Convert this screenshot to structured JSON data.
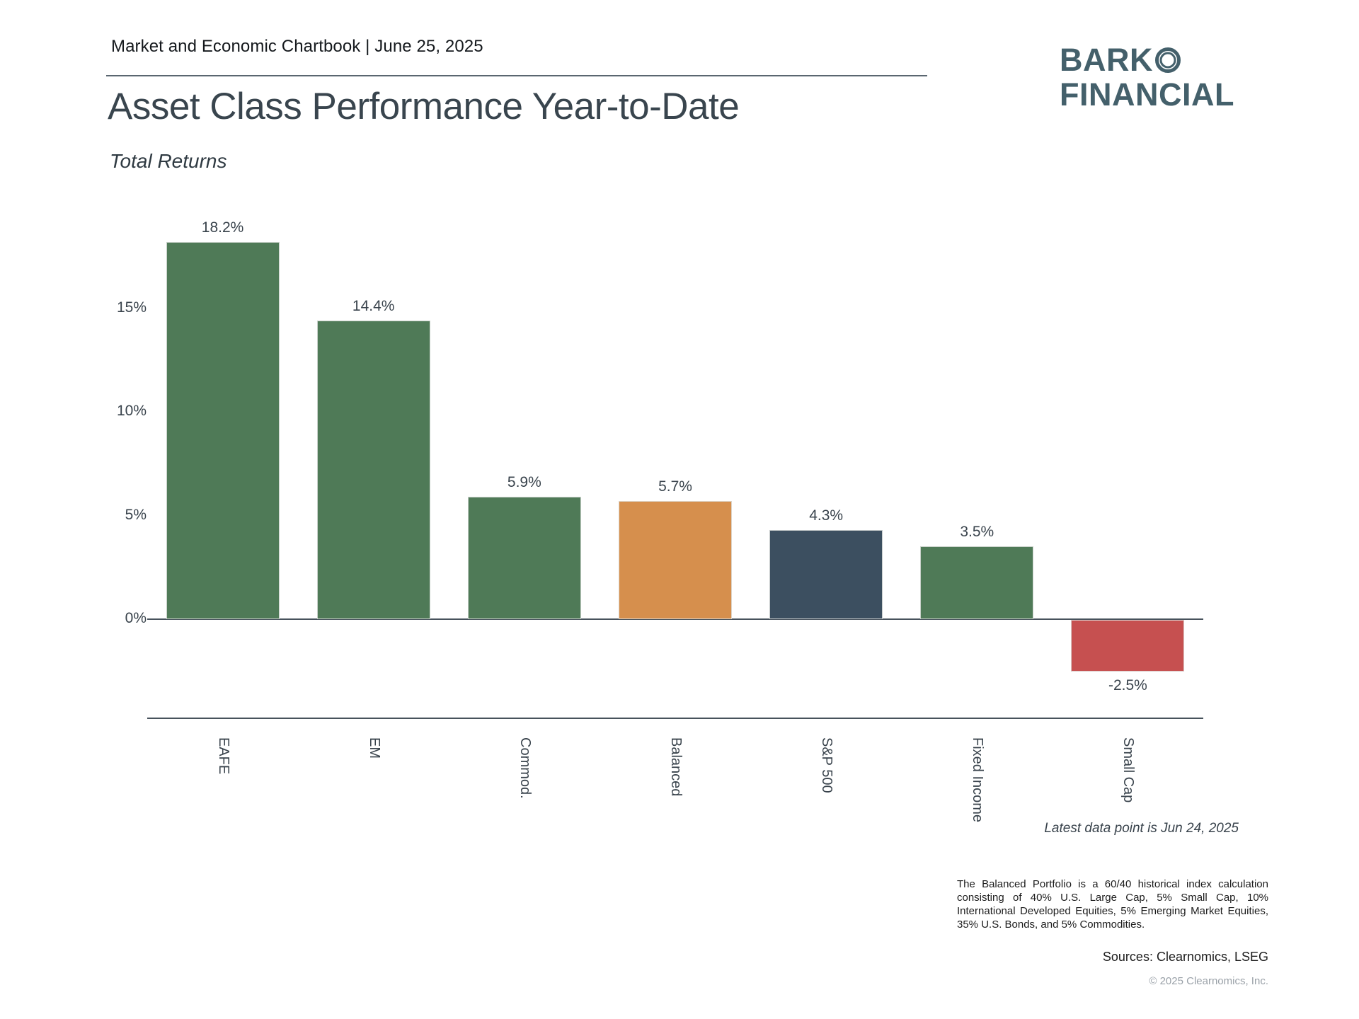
{
  "header": {
    "report_line": "Market and Economic Chartbook | June 25, 2025"
  },
  "logo": {
    "line1": "BARK",
    "ring_icon": "double-ring-o-icon",
    "line2": "FINANCIAL",
    "color": "#44606b"
  },
  "chart_data": {
    "type": "bar",
    "title": "Asset Class Performance Year-to-Date",
    "subtitle": "Total Returns",
    "categories": [
      "EAFE",
      "EM",
      "Commod.",
      "Balanced",
      "S&P 500",
      "Fixed Income",
      "Small Cap"
    ],
    "values": [
      18.2,
      14.4,
      5.9,
      5.7,
      4.3,
      3.5,
      -2.5
    ],
    "value_labels": [
      "18.2%",
      "14.4%",
      "5.9%",
      "5.7%",
      "4.3%",
      "3.5%",
      "-2.5%"
    ],
    "bar_colors": [
      "#4f7a57",
      "#4f7a57",
      "#4f7a57",
      "#d68f4d",
      "#3c4f60",
      "#4f7a57",
      "#c65050"
    ],
    "yticks": [
      {
        "label": "0%",
        "value": 0
      },
      {
        "label": "5%",
        "value": 5
      },
      {
        "label": "10%",
        "value": 10
      },
      {
        "label": "15%",
        "value": 15
      }
    ],
    "ylim": [
      -4.8,
      19.8
    ],
    "xlabel": "",
    "ylabel": "",
    "grid": false,
    "legend": "none",
    "x_label_rotation": 90,
    "axis_color": "#47525c"
  },
  "footer": {
    "latest_note": "Latest data point is Jun 24, 2025",
    "footnote": "The Balanced Portfolio is a 60/40 historical index calculation consisting of 40% U.S. Large Cap, 5% Small Cap, 10% International Developed Equities, 5% Emerging Market Equities, 35% U.S. Bonds, and 5% Commodities.",
    "sources": "Sources: Clearnomics, LSEG",
    "copyright": "© 2025 Clearnomics, Inc."
  }
}
